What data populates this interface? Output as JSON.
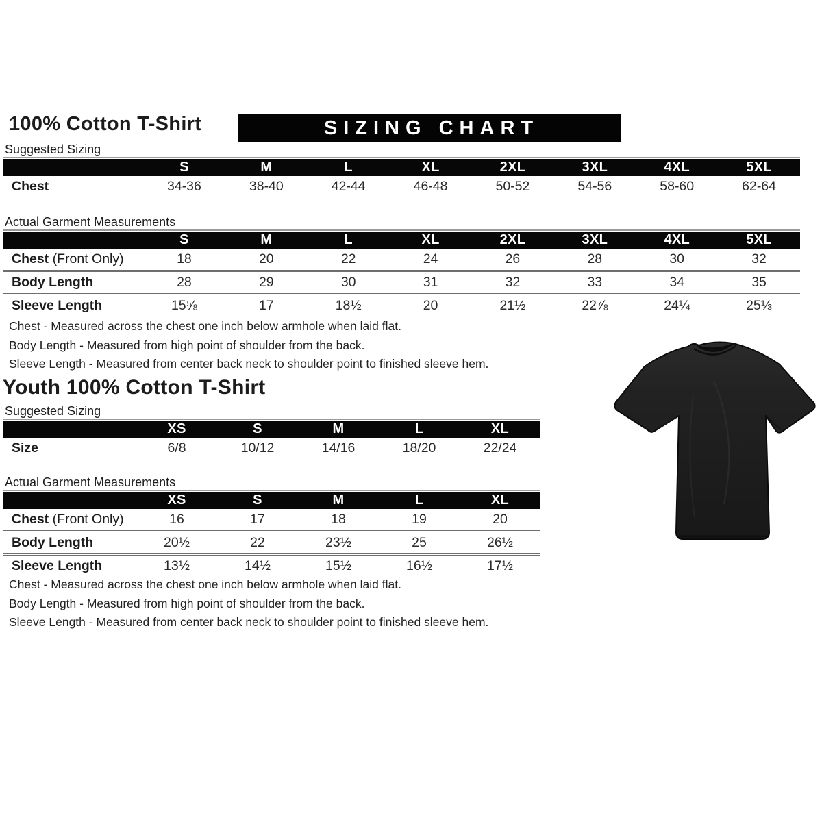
{
  "adult": {
    "title": "100% Cotton T-Shirt",
    "banner": "SIZING CHART",
    "suggested_label": "Suggested Sizing",
    "actual_label": "Actual Garment Measurements",
    "suggested_table": {
      "columns": [
        "S",
        "M",
        "L",
        "XL",
        "2XL",
        "3XL",
        "4XL",
        "5XL"
      ],
      "rows": [
        {
          "label": "Chest",
          "suffix": "",
          "values": [
            "34-36",
            "38-40",
            "42-44",
            "46-48",
            "50-52",
            "54-56",
            "58-60",
            "62-64"
          ]
        }
      ]
    },
    "actual_table": {
      "columns": [
        "S",
        "M",
        "L",
        "XL",
        "2XL",
        "3XL",
        "4XL",
        "5XL"
      ],
      "rows": [
        {
          "label": "Chest",
          "suffix": " (Front Only)",
          "values": [
            "18",
            "20",
            "22",
            "24",
            "26",
            "28",
            "30",
            "32"
          ]
        },
        {
          "label": "Body Length",
          "suffix": "",
          "values": [
            "28",
            "29",
            "30",
            "31",
            "32",
            "33",
            "34",
            "35"
          ]
        },
        {
          "label": "Sleeve Length",
          "suffix": "",
          "values": [
            "15⅝",
            "17",
            "18½",
            "20",
            "21½",
            "22⅞",
            "24¼",
            "25⅓"
          ]
        }
      ]
    },
    "notes": [
      "Chest - Measured across the chest one inch below armhole when laid flat.",
      "Body Length - Measured from high point of shoulder from the back.",
      "Sleeve Length - Measured from center back neck to shoulder point to finished sleeve hem."
    ]
  },
  "youth": {
    "title": "Youth 100% Cotton T-Shirt",
    "suggested_label": "Suggested Sizing",
    "actual_label": "Actual Garment Measurements",
    "suggested_table": {
      "columns": [
        "XS",
        "S",
        "M",
        "L",
        "XL"
      ],
      "rows": [
        {
          "label": "Size",
          "suffix": "",
          "values": [
            "6/8",
            "10/12",
            "14/16",
            "18/20",
            "22/24"
          ]
        }
      ]
    },
    "actual_table": {
      "columns": [
        "XS",
        "S",
        "M",
        "L",
        "XL"
      ],
      "rows": [
        {
          "label": "Chest",
          "suffix": " (Front Only)",
          "values": [
            "16",
            "17",
            "18",
            "19",
            "20"
          ]
        },
        {
          "label": "Body Length",
          "suffix": "",
          "values": [
            "20½",
            "22",
            "23½",
            "25",
            "26½"
          ]
        },
        {
          "label": "Sleeve Length",
          "suffix": "",
          "values": [
            "13½",
            "14½",
            "15½",
            "16½",
            "17½"
          ]
        }
      ]
    },
    "notes": [
      "Chest - Measured across the chest one inch below armhole when laid flat.",
      "Body Length - Measured from high point of shoulder from the back.",
      "Sleeve Length - Measured from center back neck to shoulder point to finished sleeve hem."
    ]
  },
  "tshirt": {
    "description": "black short-sleeve t-shirt product photo",
    "color": "#1f1f1f"
  },
  "colors": {
    "banner_bg": "#040404",
    "banner_text": "#ffffff",
    "header_bar": "#070707",
    "separator": "#6e6e6e",
    "body_text": "#1c1c1c"
  }
}
